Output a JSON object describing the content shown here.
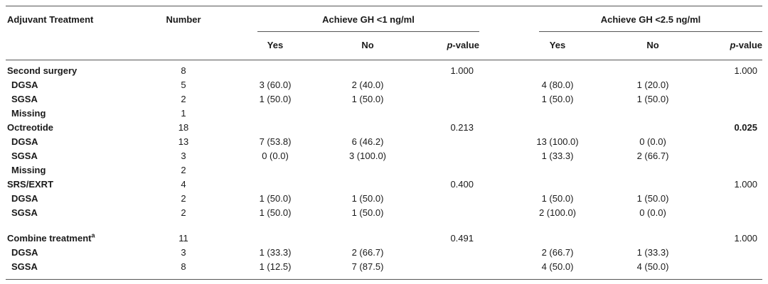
{
  "header": {
    "col_treatment": "Adjuvant Treatment",
    "col_number": "Number",
    "group1": "Achieve GH <1 ng/ml",
    "group2": "Achieve GH <2.5 ng/ml",
    "yes": "Yes",
    "no": "No",
    "p_italic": "p",
    "p_rest": "-value"
  },
  "rows": [
    {
      "label": "Second surgery",
      "sup": "",
      "main": true,
      "number": "8",
      "y1": "",
      "n1": "",
      "p1": "1.000",
      "y2": "",
      "n2": "",
      "p2": "1.000"
    },
    {
      "label": "DGSA",
      "sup": "",
      "main": false,
      "number": "5",
      "y1": "3 (60.0)",
      "n1": "2 (40.0)",
      "p1": "",
      "y2": "4 (80.0)",
      "n2": "1 (20.0)",
      "p2": ""
    },
    {
      "label": "SGSA",
      "sup": "",
      "main": false,
      "number": "2",
      "y1": "1 (50.0)",
      "n1": "1 (50.0)",
      "p1": "",
      "y2": "1 (50.0)",
      "n2": "1 (50.0)",
      "p2": ""
    },
    {
      "label": "Missing",
      "sup": "",
      "main": false,
      "number": "1",
      "y1": "",
      "n1": "",
      "p1": "",
      "y2": "",
      "n2": "",
      "p2": ""
    },
    {
      "label": "Octreotide",
      "sup": "",
      "main": true,
      "number": "18",
      "y1": "",
      "n1": "",
      "p1": "0.213",
      "y2": "",
      "n2": "",
      "p2": "0.025",
      "p2_bold": true
    },
    {
      "label": "DGSA",
      "sup": "",
      "main": false,
      "number": "13",
      "y1": "7 (53.8)",
      "n1": "6 (46.2)",
      "p1": "",
      "y2": "13 (100.0)",
      "n2": "0 (0.0)",
      "p2": ""
    },
    {
      "label": "SGSA",
      "sup": "",
      "main": false,
      "number": "3",
      "y1": "0 (0.0)",
      "n1": "3 (100.0)",
      "p1": "",
      "y2": "1 (33.3)",
      "n2": "2 (66.7)",
      "p2": ""
    },
    {
      "label": "Missing",
      "sup": "",
      "main": false,
      "number": "2",
      "y1": "",
      "n1": "",
      "p1": "",
      "y2": "",
      "n2": "",
      "p2": ""
    },
    {
      "label": "SRS/EXRT",
      "sup": "",
      "main": true,
      "number": "4",
      "y1": "",
      "n1": "",
      "p1": "0.400",
      "y2": "",
      "n2": "",
      "p2": "1.000"
    },
    {
      "label": "DGSA",
      "sup": "",
      "main": false,
      "number": "2",
      "y1": "1 (50.0)",
      "n1": "1 (50.0)",
      "p1": "",
      "y2": "1 (50.0)",
      "n2": "1 (50.0)",
      "p2": ""
    },
    {
      "label": "SGSA",
      "sup": "",
      "main": false,
      "number": "2",
      "y1": "1 (50.0)",
      "n1": "1 (50.0)",
      "p1": "",
      "y2": "2 (100.0)",
      "n2": "0 (0.0)",
      "p2": ""
    },
    {
      "label": "Combine treatment",
      "sup": "a",
      "main": true,
      "number": "11",
      "y1": "",
      "n1": "",
      "p1": "0.491",
      "y2": "",
      "n2": "",
      "p2": "1.000"
    },
    {
      "label": "DGSA",
      "sup": "",
      "main": false,
      "number": "3",
      "y1": "1 (33.3)",
      "n1": "2 (66.7)",
      "p1": "",
      "y2": "2 (66.7)",
      "n2": "1 (33.3)",
      "p2": ""
    },
    {
      "label": "SGSA",
      "sup": "",
      "main": false,
      "number": "8",
      "y1": "1 (12.5)",
      "n1": "7 (87.5)",
      "p1": "",
      "y2": "4 (50.0)",
      "n2": "4 (50.0)",
      "p2": ""
    }
  ]
}
